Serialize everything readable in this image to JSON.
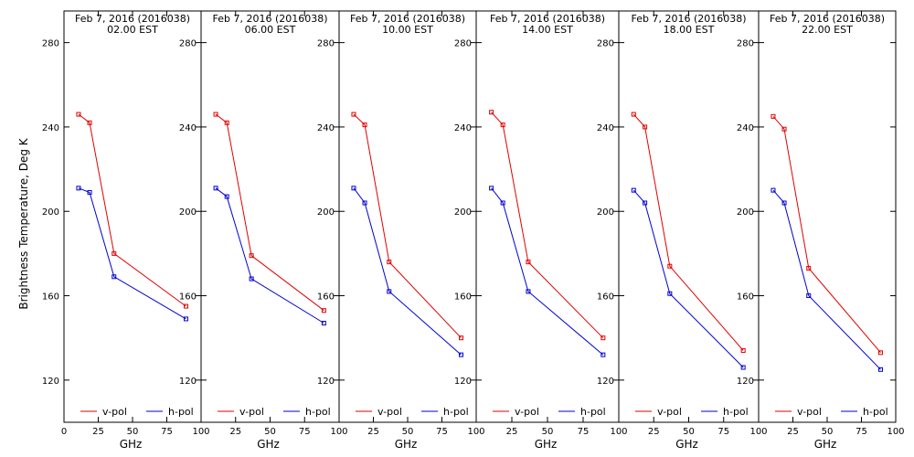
{
  "chart_data": {
    "type": "line",
    "ylabel": "Brightness Temperature, Deg K",
    "xlabel": "GHz",
    "xlim": [
      0,
      100
    ],
    "ylim": [
      100,
      295
    ],
    "x_ticks": [
      0,
      25,
      50,
      75,
      100
    ],
    "y_ticks": [
      120,
      160,
      200,
      240,
      280
    ],
    "x": [
      10.65,
      18.7,
      36.5,
      89.0
    ],
    "colors": {
      "v-pol": "#e00000",
      "h-pol": "#0000d0"
    },
    "panels": [
      {
        "title_line1": "Feb  7, 2016 (2016038)",
        "title_line2": "02.00 EST",
        "series": [
          {
            "name": "v-pol",
            "values": [
              246,
              242,
              180,
              155
            ]
          },
          {
            "name": "h-pol",
            "values": [
              211,
              209,
              169,
              149
            ]
          }
        ]
      },
      {
        "title_line1": "Feb  7, 2016 (2016038)",
        "title_line2": "06.00 EST",
        "series": [
          {
            "name": "v-pol",
            "values": [
              246,
              242,
              179,
              153
            ]
          },
          {
            "name": "h-pol",
            "values": [
              211,
              207,
              168,
              147
            ]
          }
        ]
      },
      {
        "title_line1": "Feb  7, 2016 (2016038)",
        "title_line2": "10.00 EST",
        "series": [
          {
            "name": "v-pol",
            "values": [
              246,
              241,
              176,
              140
            ]
          },
          {
            "name": "h-pol",
            "values": [
              211,
              204,
              162,
              132
            ]
          }
        ]
      },
      {
        "title_line1": "Feb  7, 2016 (2016038)",
        "title_line2": "14.00 EST",
        "series": [
          {
            "name": "v-pol",
            "values": [
              247,
              241,
              176,
              140
            ]
          },
          {
            "name": "h-pol",
            "values": [
              211,
              204,
              162,
              132
            ]
          }
        ]
      },
      {
        "title_line1": "Feb  7, 2016 (2016038)",
        "title_line2": "18.00 EST",
        "series": [
          {
            "name": "v-pol",
            "values": [
              246,
              240,
              174,
              134
            ]
          },
          {
            "name": "h-pol",
            "values": [
              210,
              204,
              161,
              126
            ]
          }
        ]
      },
      {
        "title_line1": "Feb  7, 2016 (2016038)",
        "title_line2": "22.00 EST",
        "series": [
          {
            "name": "v-pol",
            "values": [
              245,
              239,
              173,
              133
            ]
          },
          {
            "name": "h-pol",
            "values": [
              210,
              204,
              160,
              125
            ]
          }
        ]
      }
    ],
    "legend": [
      "v-pol",
      "h-pol"
    ]
  }
}
